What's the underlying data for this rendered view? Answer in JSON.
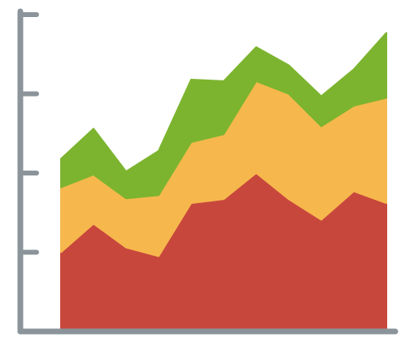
{
  "chart_data": {
    "type": "area",
    "stacked": true,
    "x": [
      0,
      1,
      2,
      3,
      4,
      5,
      6,
      7,
      8,
      9,
      10
    ],
    "xlim": [
      0,
      10
    ],
    "ylim": [
      0,
      4
    ],
    "yticks": [
      0,
      1,
      2,
      3,
      4
    ],
    "axis_color": "#8b949a",
    "series": [
      {
        "color": "#c8473d",
        "values": [
          1.0,
          1.36,
          1.06,
          0.95,
          1.62,
          1.67,
          2.0,
          1.67,
          1.41,
          1.77,
          1.62
        ]
      },
      {
        "color": "#f6b84c",
        "values": [
          0.82,
          0.62,
          0.62,
          0.77,
          0.77,
          0.82,
          1.16,
          1.33,
          1.18,
          1.08,
          1.33
        ]
      },
      {
        "color": "#7cb42f",
        "values": [
          0.36,
          0.58,
          0.34,
          0.56,
          0.79,
          0.67,
          0.43,
          0.36,
          0.38,
          0.46,
          0.82
        ]
      }
    ]
  }
}
